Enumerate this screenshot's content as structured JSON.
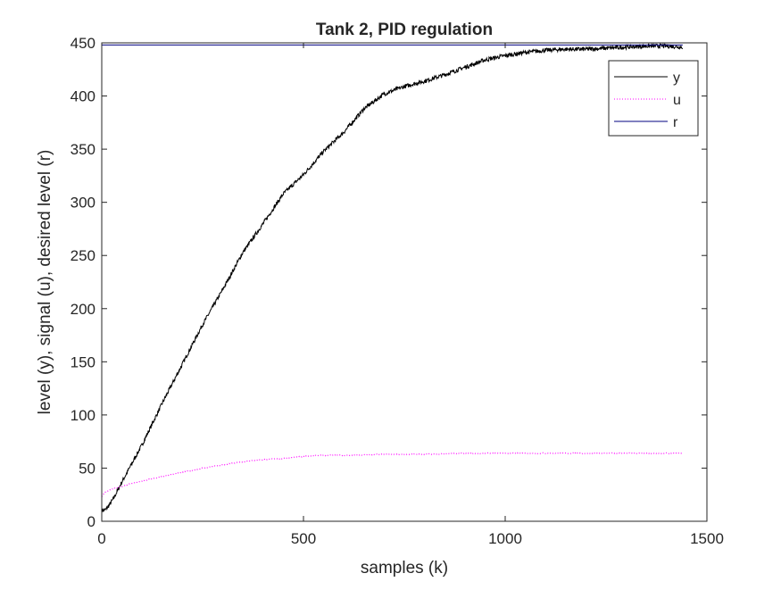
{
  "chart_data": {
    "type": "line",
    "title": "Tank 2, PID regulation",
    "xlabel": "samples (k)",
    "ylabel": "level (y), signal (u), desired level (r)",
    "xlim": [
      0,
      1500
    ],
    "ylim": [
      0,
      450
    ],
    "xticks": [
      0,
      500,
      1000,
      1500
    ],
    "yticks": [
      0,
      50,
      100,
      150,
      200,
      250,
      300,
      350,
      400,
      450
    ],
    "xtick_labels": [
      "0",
      "500",
      "1000",
      "1500"
    ],
    "ytick_labels": [
      "0",
      "50",
      "100",
      "150",
      "200",
      "250",
      "300",
      "350",
      "400",
      "450"
    ],
    "grid": false,
    "legend_position": "top-right",
    "series": [
      {
        "name": "y",
        "style": "solid",
        "color": "#000000",
        "x": [
          0,
          10,
          20,
          30,
          50,
          70,
          100,
          150,
          200,
          250,
          300,
          350,
          400,
          450,
          500,
          550,
          600,
          650,
          700,
          750,
          800,
          850,
          900,
          950,
          1000,
          1050,
          1100,
          1150,
          1200,
          1250,
          1300,
          1350,
          1400,
          1440
        ],
        "y": [
          10,
          11,
          16,
          22,
          37,
          51,
          72,
          111,
          148,
          185,
          218,
          253,
          280,
          308,
          326,
          348,
          366,
          388,
          402,
          409,
          414,
          420,
          427,
          434,
          438,
          441,
          443,
          444,
          444,
          445,
          446,
          447,
          447,
          446
        ]
      },
      {
        "name": "u",
        "style": "dotted",
        "color": "#ff00ff",
        "x": [
          0,
          10,
          25,
          50,
          100,
          150,
          200,
          250,
          300,
          350,
          400,
          450,
          500,
          550,
          600,
          700,
          800,
          900,
          1000,
          1100,
          1200,
          1300,
          1400,
          1440
        ],
        "y": [
          23,
          28,
          30,
          33,
          38,
          42,
          46,
          50,
          53,
          56,
          58,
          59,
          61,
          62,
          62,
          63,
          63,
          64,
          64,
          64,
          64,
          64,
          64,
          64
        ]
      },
      {
        "name": "r",
        "style": "solid",
        "color": "#000080",
        "x": [
          0,
          1440
        ],
        "y": [
          448,
          448
        ]
      }
    ]
  }
}
